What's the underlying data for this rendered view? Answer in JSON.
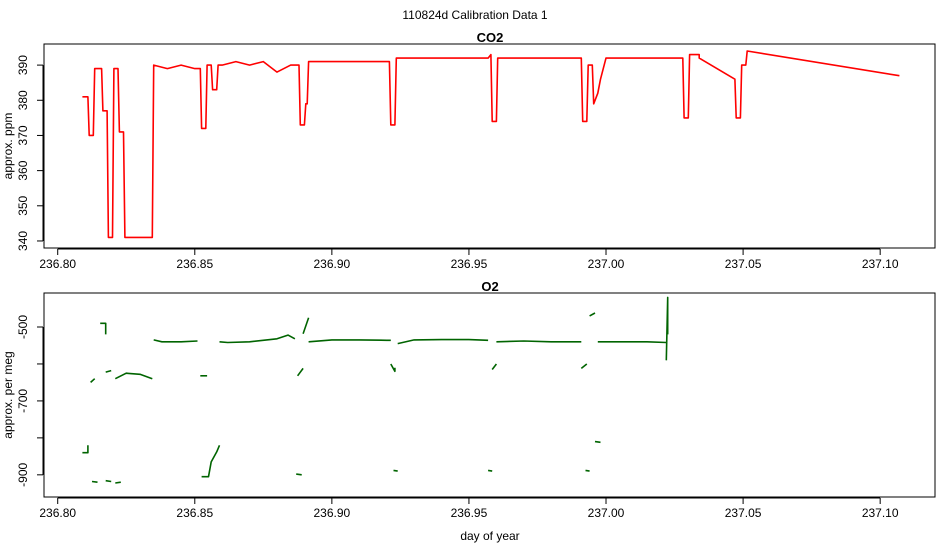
{
  "figure": {
    "main_title": "110824d   Calibration Data 1"
  },
  "chart_data": [
    {
      "type": "line",
      "title": "CO2",
      "xlabel": "",
      "ylabel": "approx. ppm",
      "xlim": [
        236.795,
        237.12
      ],
      "ylim": [
        338,
        396
      ],
      "x_ticks": [
        236.8,
        236.85,
        236.9,
        236.95,
        237.0,
        237.05,
        237.1
      ],
      "x_tick_labels": [
        "236.80",
        "236.85",
        "236.90",
        "236.95",
        "237.00",
        "237.05",
        "237.10"
      ],
      "y_ticks": [
        340,
        350,
        360,
        370,
        380,
        390
      ],
      "y_tick_labels": [
        "340",
        "350",
        "360",
        "370",
        "380",
        "390"
      ],
      "grid": false,
      "color": "#ff0000",
      "series": [
        {
          "x": [
            236.809,
            236.811,
            236.8115,
            236.813,
            236.8135,
            236.816,
            236.8165,
            236.818,
            236.8185,
            236.82,
            236.8205,
            236.822,
            236.8225,
            236.824,
            236.8245,
            236.8345,
            236.835,
            236.84,
            236.845,
            236.85,
            236.852,
            236.8525,
            236.854,
            236.8545,
            236.856,
            236.8565,
            236.858,
            236.8585,
            236.86,
            236.865,
            236.87,
            236.875,
            236.88,
            236.885,
            236.887,
            236.888,
            236.8885,
            236.89,
            236.8905,
            236.891,
            236.8915,
            236.895,
            236.9,
            236.905,
            236.91,
            236.915,
            236.92,
            236.921,
            236.9215,
            236.923,
            236.9235,
            236.93,
            236.94,
            236.95,
            236.957,
            236.958,
            236.9585,
            236.96,
            236.9605,
            236.97,
            236.98,
            236.99,
            236.991,
            236.9915,
            236.993,
            236.9935,
            236.995,
            236.9955,
            236.997,
            236.998,
            237.0,
            237.01,
            237.02,
            237.028,
            237.0285,
            237.03,
            237.0305,
            237.034,
            237.034,
            237.047,
            237.0475,
            237.049,
            237.0495,
            237.051,
            237.0515,
            237.107
          ],
          "y": [
            381,
            381,
            370,
            370,
            389,
            389,
            377,
            377,
            341,
            341,
            389,
            389,
            371,
            371,
            341,
            341,
            390,
            389,
            390,
            389,
            389,
            372,
            372,
            390,
            390,
            383,
            383,
            390,
            390,
            391,
            390,
            391,
            388,
            390,
            390,
            390,
            373,
            373,
            379,
            379,
            391,
            391,
            391,
            391,
            391,
            391,
            391,
            391,
            373,
            373,
            392,
            392,
            392,
            392,
            392,
            393,
            374,
            374,
            392,
            392,
            392,
            392,
            392,
            374,
            374,
            390,
            390,
            379,
            382,
            386,
            392,
            392,
            392,
            392,
            375,
            375,
            393,
            393,
            392,
            386,
            375,
            375,
            390,
            390,
            394,
            387
          ]
        }
      ]
    },
    {
      "type": "line",
      "title": "O2",
      "xlabel": "day of year",
      "ylabel": "approx. per meg",
      "xlim": [
        236.795,
        237.12
      ],
      "ylim": [
        -960,
        -408
      ],
      "x_ticks": [
        236.8,
        236.85,
        236.9,
        236.95,
        237.0,
        237.05,
        237.1
      ],
      "x_tick_labels": [
        "236.80",
        "236.85",
        "236.90",
        "236.95",
        "237.00",
        "237.05",
        "237.10"
      ],
      "y_ticks": [
        -900,
        -800,
        -700,
        -600,
        -500
      ],
      "y_tick_labels": [
        "-900",
        "",
        "-700",
        "",
        "-500"
      ],
      "grid": false,
      "color": "#006400",
      "series": [
        {
          "x": [
            236.809,
            236.811,
            236.811
          ],
          "y": [
            -840,
            -840,
            -820
          ]
        },
        {
          "x": [
            236.812,
            236.8135
          ],
          "y": [
            -650,
            -640
          ]
        },
        {
          "x": [
            236.8125,
            236.8145
          ],
          "y": [
            -918,
            -920
          ]
        },
        {
          "x": [
            236.8155,
            236.8175,
            236.8175
          ],
          "y": [
            -490,
            -490,
            -520
          ]
        },
        {
          "x": [
            236.8175,
            236.8195
          ],
          "y": [
            -622,
            -618
          ]
        },
        {
          "x": [
            236.8175,
            236.8195
          ],
          "y": [
            -916,
            -918
          ]
        },
        {
          "x": [
            236.821,
            236.823
          ],
          "y": [
            -922,
            -920
          ]
        },
        {
          "x": [
            236.821,
            236.825,
            236.83,
            236.8345
          ],
          "y": [
            -640,
            -625,
            -628,
            -640
          ]
        },
        {
          "x": [
            236.835,
            236.838,
            236.845,
            236.851
          ],
          "y": [
            -535,
            -540,
            -540,
            -538
          ]
        },
        {
          "x": [
            236.852,
            236.8545
          ],
          "y": [
            -632,
            -632
          ]
        },
        {
          "x": [
            236.8525,
            236.855,
            236.856,
            236.858,
            236.859
          ],
          "y": [
            -905,
            -905,
            -865,
            -838,
            -820
          ]
        },
        {
          "x": [
            236.859,
            236.862,
            236.87,
            236.88,
            236.884,
            236.8865
          ],
          "y": [
            -540,
            -542,
            -540,
            -532,
            -522,
            -532
          ]
        },
        {
          "x": [
            236.8875,
            236.8895
          ],
          "y": [
            -632,
            -612
          ]
        },
        {
          "x": [
            236.887,
            236.889
          ],
          "y": [
            -898,
            -900
          ]
        },
        {
          "x": [
            236.8895,
            236.8915
          ],
          "y": [
            -518,
            -475
          ]
        },
        {
          "x": [
            236.8915,
            236.9,
            236.91,
            236.92,
            236.9215
          ],
          "y": [
            -540,
            -535,
            -535,
            -536,
            -536
          ]
        },
        {
          "x": [
            236.9215,
            236.923,
            236.923
          ],
          "y": [
            -600,
            -620,
            -610
          ]
        },
        {
          "x": [
            236.9225,
            236.924
          ],
          "y": [
            -888,
            -890
          ]
        },
        {
          "x": [
            236.924,
            236.93,
            236.94,
            236.95,
            236.957
          ],
          "y": [
            -545,
            -535,
            -534,
            -534,
            -536
          ]
        },
        {
          "x": [
            236.957,
            236.9585
          ],
          "y": [
            -888,
            -890
          ]
        },
        {
          "x": [
            236.9585,
            236.96
          ],
          "y": [
            -615,
            -600
          ]
        },
        {
          "x": [
            236.96,
            236.97,
            236.98,
            236.991
          ],
          "y": [
            -540,
            -538,
            -540,
            -540
          ]
        },
        {
          "x": [
            236.991,
            236.993
          ],
          "y": [
            -612,
            -600
          ]
        },
        {
          "x": [
            236.9925,
            236.994
          ],
          "y": [
            -888,
            -890
          ]
        },
        {
          "x": [
            236.994,
            236.996
          ],
          "y": [
            -470,
            -462
          ]
        },
        {
          "x": [
            236.996,
            236.998
          ],
          "y": [
            -810,
            -812
          ]
        },
        {
          "x": [
            236.997,
            237.005,
            237.015,
            237.022
          ],
          "y": [
            -540,
            -540,
            -540,
            -542
          ]
        },
        {
          "x": [
            237.022,
            237.0225,
            237.0225
          ],
          "y": [
            -590,
            -420,
            -520
          ]
        }
      ]
    }
  ]
}
